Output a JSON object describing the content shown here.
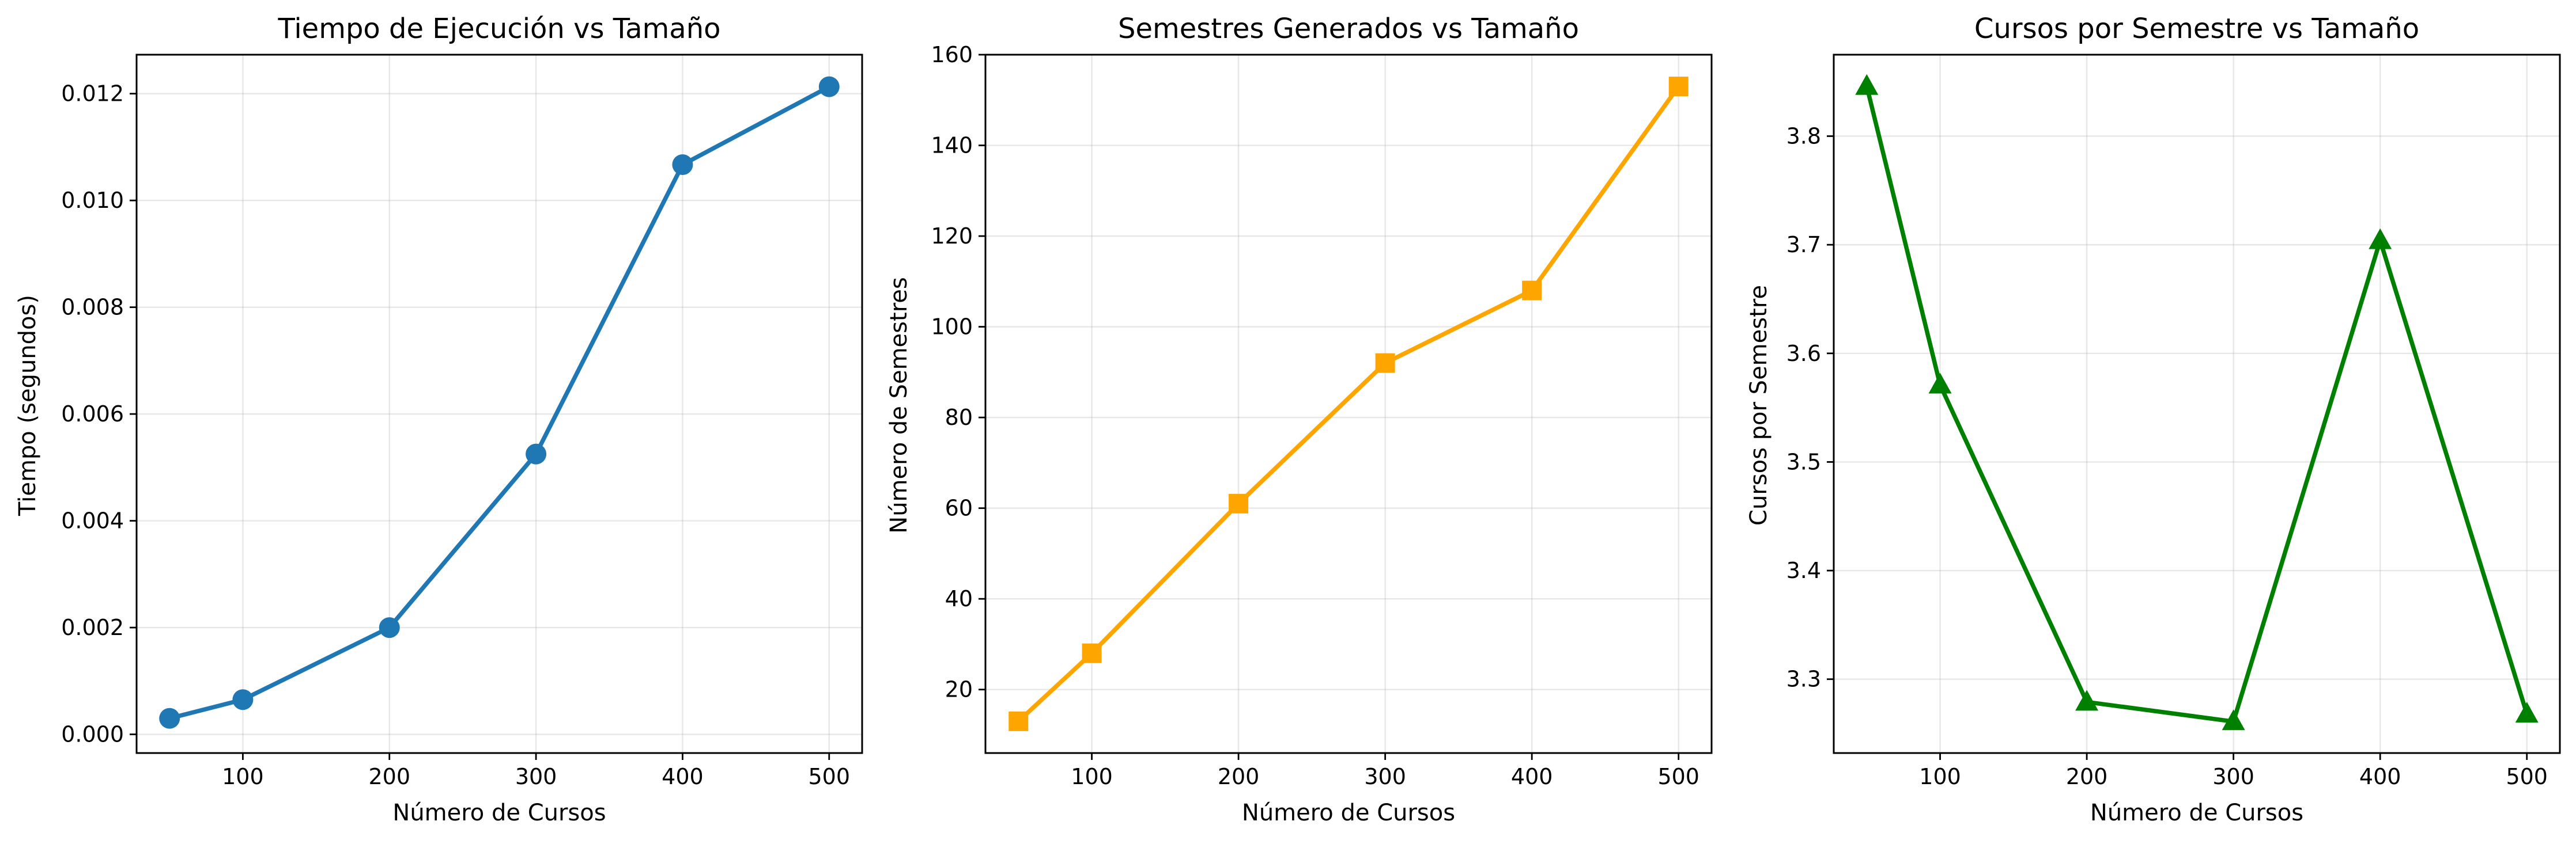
{
  "chart_data": [
    {
      "type": "line",
      "title": "Tiempo de Ejecución vs Tamaño",
      "xlabel": "Número de Cursos",
      "ylabel": "Tiempo (segundos)",
      "x": [
        50,
        100,
        200,
        300,
        400,
        500
      ],
      "series": [
        {
          "name": "",
          "values": [
            0.0003,
            0.00065,
            0.002,
            0.00525,
            0.01067,
            0.01213
          ],
          "color": "#1f77b4",
          "marker": "circle"
        }
      ],
      "xlim": [
        27.5,
        522.5
      ],
      "ylim": [
        -0.00035,
        0.01273
      ],
      "xticks": [
        100,
        200,
        300,
        400,
        500
      ],
      "xtick_labels": [
        "100",
        "200",
        "300",
        "400",
        "500"
      ],
      "yticks": [
        0,
        0.002,
        0.004,
        0.006,
        0.008,
        0.01,
        0.012
      ],
      "ytick_labels": [
        "0.000",
        "0.002",
        "0.004",
        "0.006",
        "0.008",
        "0.010",
        "0.012"
      ],
      "grid": true
    },
    {
      "type": "line",
      "title": "Semestres Generados vs Tamaño",
      "xlabel": "Número de Cursos",
      "ylabel": "Número de Semestres",
      "x": [
        50,
        100,
        200,
        300,
        400,
        500
      ],
      "series": [
        {
          "name": "",
          "values": [
            13,
            28,
            61,
            92,
            108,
            153
          ],
          "color": "#ffa500",
          "marker": "square"
        }
      ],
      "xlim": [
        27.5,
        522.5
      ],
      "ylim": [
        6,
        160
      ],
      "xticks": [
        100,
        200,
        300,
        400,
        500
      ],
      "xtick_labels": [
        "100",
        "200",
        "300",
        "400",
        "500"
      ],
      "yticks": [
        20,
        40,
        60,
        80,
        100,
        120,
        140,
        160
      ],
      "ytick_labels": [
        "20",
        "40",
        "60",
        "80",
        "100",
        "120",
        "140",
        "160"
      ],
      "grid": true
    },
    {
      "type": "line",
      "title": "Cursos por Semestre vs Tamaño",
      "xlabel": "Número de Cursos",
      "ylabel": "Cursos por Semestre",
      "x": [
        50,
        100,
        200,
        300,
        400,
        500
      ],
      "series": [
        {
          "name": "",
          "values": [
            3.846,
            3.571,
            3.279,
            3.261,
            3.704,
            3.268
          ],
          "color": "#008000",
          "marker": "triangle"
        }
      ],
      "xlim": [
        27.5,
        522.5
      ],
      "ylim": [
        3.232,
        3.875
      ],
      "xticks": [
        100,
        200,
        300,
        400,
        500
      ],
      "xtick_labels": [
        "100",
        "200",
        "300",
        "400",
        "500"
      ],
      "yticks": [
        3.3,
        3.4,
        3.5,
        3.6,
        3.7,
        3.8
      ],
      "ytick_labels": [
        "3.3",
        "3.4",
        "3.5",
        "3.6",
        "3.7",
        "3.8"
      ],
      "grid": true
    }
  ]
}
